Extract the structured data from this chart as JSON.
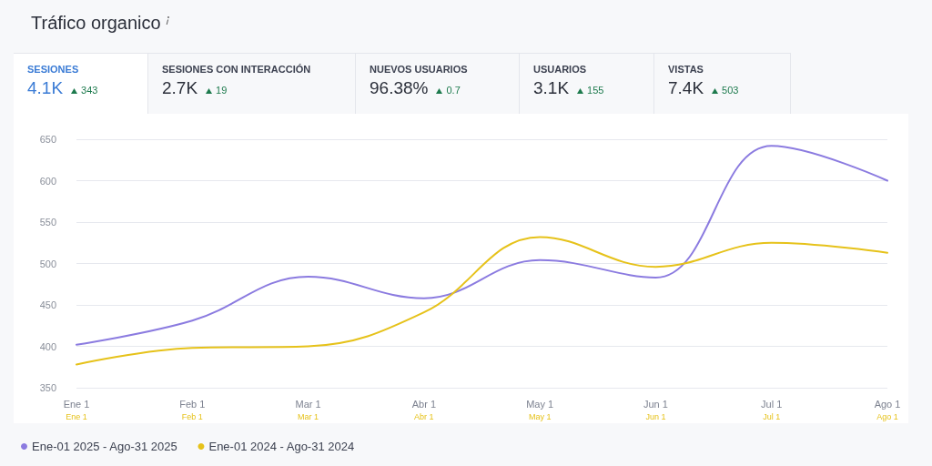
{
  "chart_data": {
    "type": "line",
    "title": "Tráfico organico",
    "annotations": [
      "SESIONES",
      "4.1K",
      "343",
      "SESIONES CON INTERACCIÓN",
      "2.7K",
      "19",
      "NUEVOS USUARIOS",
      "96.38%",
      "0.7",
      "USUARIOS",
      "3.1K",
      "155",
      "VISTAS",
      "7.4K",
      "503"
    ],
    "categories": [
      "Ene 1",
      "Feb 1",
      "Mar 1",
      "Abr 1",
      "May 1",
      "Jun 1",
      "Jul 1",
      "Ago 1"
    ],
    "series": [
      {
        "name": "Ene-01 2025 - Ago-31 2025",
        "color": "#8b7be0",
        "values": [
          402,
          431,
          484,
          458,
          504,
          483,
          642,
          600
        ]
      },
      {
        "name": "Ene-01 2024 - Ago-31 2024",
        "color": "#e6c21a",
        "values": [
          378,
          398,
          400,
          441,
          532,
          496,
          525,
          513
        ]
      }
    ],
    "ylim": [
      350,
      650
    ],
    "yticks": [
      350,
      400,
      450,
      500,
      550,
      600,
      650
    ],
    "grid": "y",
    "legend": "bottom left",
    "marker": "none",
    "line_style": "solid"
  }
}
